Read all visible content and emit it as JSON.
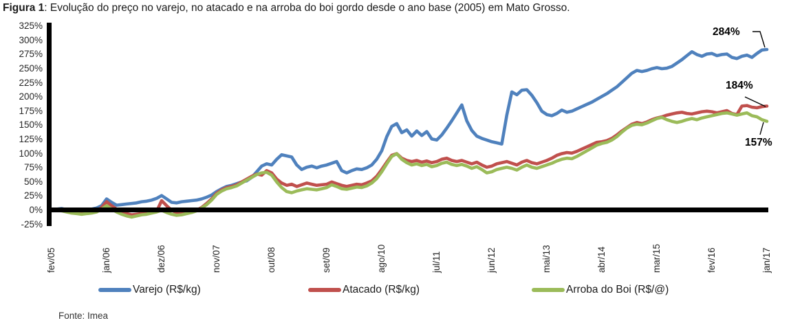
{
  "title": {
    "prefix": "Figura 1",
    "rest": ": Evolução do preço no varejo, no atacado e na arroba do boi gordo desde o ano base (2005) em Mato Grosso."
  },
  "source": "Fonte: Imea",
  "chart_data": {
    "type": "line",
    "title": "Evolução do preço no varejo, no atacado e na arroba do boi gordo desde o ano base (2005) em Mato Grosso",
    "xlabel": "",
    "ylabel": "",
    "ylim": [
      -25,
      325
    ],
    "y_tick_step": 25,
    "grid": false,
    "legend_position": "bottom",
    "y_ticks": [
      "325%",
      "300%",
      "275%",
      "250%",
      "225%",
      "200%",
      "175%",
      "150%",
      "125%",
      "100%",
      "75%",
      "50%",
      "25%",
      "0%",
      "-25%"
    ],
    "x_ticks": [
      "fev/05",
      "jan/06",
      "dez/06",
      "nov/07",
      "out/08",
      "set/09",
      "ago/10",
      "jul/11",
      "jun/12",
      "mai/13",
      "abr/14",
      "mar/15",
      "fev/16",
      "jan/17"
    ],
    "x_tick_month_indices": [
      0,
      11,
      22,
      33,
      44,
      55,
      66,
      77,
      88,
      99,
      110,
      121,
      132,
      143
    ],
    "x_unit": "month (fev/05 to jan/17, 144 monthly points, values in % vs 2005 base)",
    "end_labels": [
      "284%",
      "184%",
      "157%"
    ],
    "series": [
      {
        "name": "Varejo (R$/kg)",
        "color": "#4F81BD",
        "end_value_label": "284%",
        "values": [
          0,
          2,
          3,
          1,
          0,
          -1,
          -1,
          1,
          2,
          4,
          8,
          20,
          14,
          9,
          10,
          11,
          12,
          13,
          15,
          16,
          18,
          21,
          26,
          20,
          14,
          13,
          15,
          16,
          17,
          18,
          20,
          23,
          27,
          33,
          38,
          42,
          44,
          47,
          50,
          52,
          58,
          68,
          78,
          82,
          80,
          90,
          98,
          96,
          94,
          80,
          72,
          76,
          78,
          75,
          78,
          80,
          83,
          86,
          70,
          66,
          70,
          73,
          72,
          75,
          80,
          90,
          105,
          130,
          148,
          153,
          137,
          142,
          131,
          140,
          132,
          139,
          126,
          124,
          133,
          145,
          158,
          172,
          186,
          158,
          141,
          131,
          127,
          124,
          121,
          119,
          117,
          168,
          209,
          204,
          212,
          213,
          203,
          190,
          175,
          169,
          167,
          171,
          177,
          173,
          175,
          179,
          183,
          187,
          191,
          196,
          201,
          206,
          212,
          218,
          226,
          234,
          242,
          247,
          245,
          247,
          250,
          252,
          250,
          251,
          254,
          260,
          266,
          273,
          280,
          275,
          272,
          276,
          277,
          273,
          275,
          276,
          270,
          268,
          272,
          274,
          270,
          277,
          283,
          284
        ]
      },
      {
        "name": "Atacado (R$/kg)",
        "color": "#C0504D",
        "end_value_label": "184%",
        "values": [
          0,
          1,
          0,
          -2,
          -4,
          -5,
          -6,
          -5,
          -4,
          -2,
          5,
          15,
          8,
          2,
          -3,
          -6,
          -8,
          -7,
          -6,
          -5,
          -4,
          -2,
          17,
          8,
          0,
          -4,
          -6,
          -5,
          -3,
          0,
          5,
          12,
          20,
          30,
          36,
          40,
          42,
          45,
          50,
          55,
          60,
          64,
          62,
          70,
          66,
          55,
          48,
          44,
          46,
          42,
          45,
          48,
          46,
          44,
          45,
          46,
          50,
          47,
          44,
          42,
          44,
          46,
          45,
          48,
          52,
          60,
          72,
          85,
          97,
          100,
          92,
          88,
          86,
          88,
          85,
          87,
          84,
          86,
          90,
          92,
          88,
          86,
          88,
          85,
          82,
          85,
          80,
          76,
          78,
          82,
          84,
          86,
          83,
          80,
          85,
          88,
          84,
          82,
          85,
          88,
          92,
          97,
          100,
          102,
          101,
          104,
          108,
          112,
          116,
          120,
          121,
          123,
          127,
          133,
          140,
          146,
          152,
          155,
          153,
          156,
          160,
          163,
          165,
          168,
          170,
          172,
          173,
          171,
          170,
          172,
          174,
          175,
          174,
          172,
          174,
          176,
          171,
          169,
          184,
          185,
          182,
          181,
          183,
          184
        ]
      },
      {
        "name": "Arroba do Boi (R$/@)",
        "color": "#9BBB59",
        "end_value_label": "157%",
        "values": [
          0,
          0,
          -1,
          -3,
          -5,
          -6,
          -7,
          -6,
          -5,
          -3,
          2,
          8,
          2,
          -3,
          -7,
          -10,
          -12,
          -10,
          -8,
          -7,
          -5,
          -3,
          0,
          -4,
          -7,
          -9,
          -8,
          -6,
          -4,
          -1,
          4,
          10,
          18,
          28,
          34,
          38,
          40,
          43,
          48,
          53,
          58,
          63,
          66,
          67,
          62,
          50,
          40,
          33,
          31,
          34,
          36,
          38,
          37,
          36,
          38,
          40,
          45,
          42,
          38,
          37,
          39,
          41,
          40,
          43,
          48,
          56,
          68,
          82,
          95,
          100,
          90,
          84,
          80,
          82,
          79,
          81,
          77,
          79,
          83,
          85,
          81,
          79,
          81,
          78,
          74,
          77,
          72,
          66,
          68,
          72,
          74,
          76,
          74,
          71,
          76,
          80,
          76,
          74,
          77,
          80,
          83,
          87,
          90,
          92,
          91,
          95,
          100,
          105,
          110,
          115,
          118,
          120,
          124,
          130,
          138,
          145,
          150,
          152,
          151,
          154,
          158,
          162,
          164,
          160,
          157,
          155,
          157,
          160,
          162,
          160,
          163,
          165,
          167,
          169,
          171,
          172,
          170,
          168,
          170,
          172,
          167,
          165,
          160,
          157
        ]
      }
    ]
  }
}
